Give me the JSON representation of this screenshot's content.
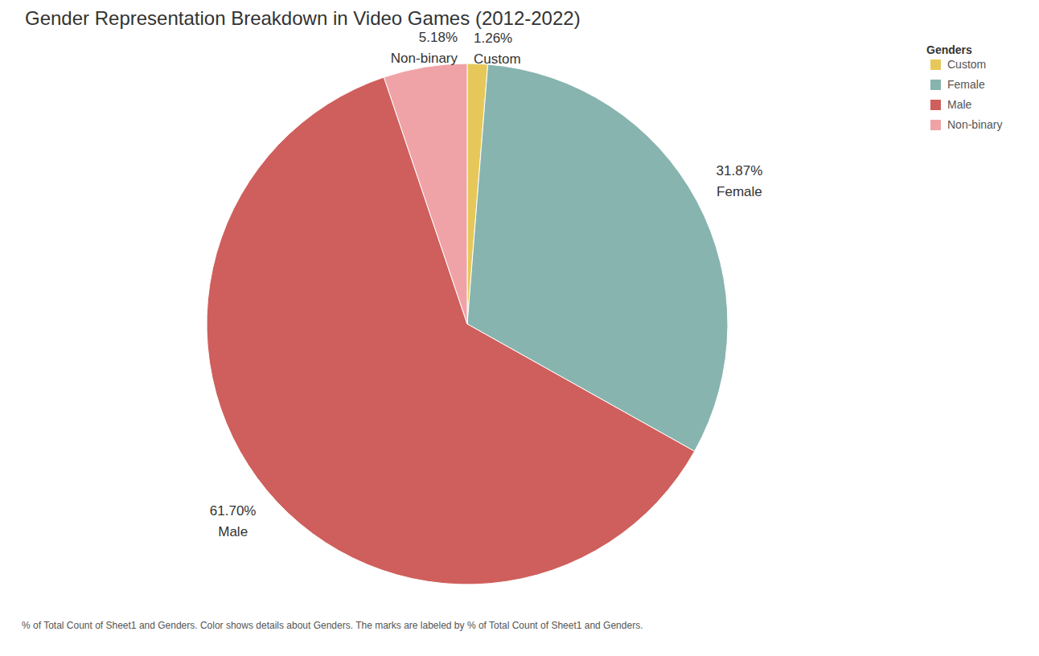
{
  "chart_data": {
    "type": "pie",
    "title": "Gender Representation Breakdown in Video Games (2012-2022)",
    "categories": [
      "Custom",
      "Female",
      "Male",
      "Non-binary"
    ],
    "values": [
      1.26,
      31.87,
      61.7,
      5.18
    ],
    "value_labels": [
      "1.26%",
      "31.87%",
      "61.70%",
      "5.18%"
    ],
    "colors": [
      "#e6c85a",
      "#87b4af",
      "#cf5f5c",
      "#f0a3a6"
    ],
    "data_labels": true,
    "legend": "top-right",
    "legend_title": "Genders",
    "caption": "% of Total Count of Sheet1 and Genders.  Color shows details about Genders.  The marks are labeled by % of Total Count of Sheet1 and Genders."
  }
}
